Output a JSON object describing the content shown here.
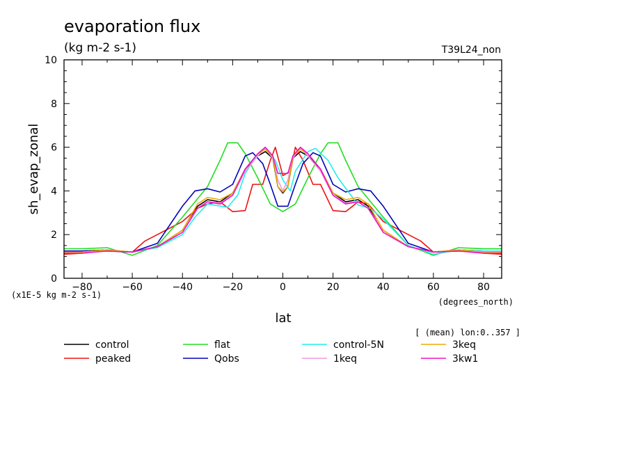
{
  "chart_data": {
    "type": "line",
    "title": "evaporation flux",
    "units": "(kg m-2 s-1)",
    "run_label": "T39L24_non",
    "ylabel": "sh_evap_zonal",
    "xlabel": "lat",
    "x_units": "(degrees_north)",
    "y_scale_note": "(x1E-5 kg m-2 s-1)",
    "mean_note": "[ (mean) lon:0..357 ]",
    "xlim": [
      -87.2,
      87.2
    ],
    "ylim": [
      0,
      10
    ],
    "x_ticks": [
      -80,
      -60,
      -40,
      -20,
      0,
      20,
      40,
      60,
      80
    ],
    "y_ticks": [
      0,
      2,
      4,
      6,
      8,
      10
    ],
    "grid": false,
    "legend_position": "bottom",
    "series": [
      {
        "name": "control",
        "color": "#000000",
        "x": [
          -87.2,
          -80,
          -70,
          -60,
          -50,
          -40,
          -34,
          -30,
          -25,
          -20,
          -15,
          -10,
          -7,
          -4,
          -2,
          0,
          2,
          4,
          7,
          10,
          15,
          20,
          25,
          30,
          34,
          40,
          50,
          60,
          70,
          80,
          87.2
        ],
        "y": [
          1.25,
          1.25,
          1.3,
          1.2,
          1.45,
          2.2,
          3.3,
          3.6,
          3.5,
          3.9,
          5.0,
          5.6,
          5.8,
          5.5,
          4.2,
          3.9,
          4.2,
          5.5,
          5.8,
          5.6,
          5.0,
          3.9,
          3.5,
          3.6,
          3.3,
          2.2,
          1.45,
          1.2,
          1.3,
          1.25,
          1.25
        ]
      },
      {
        "name": "peaked",
        "color": "#ee1111",
        "x": [
          -87.2,
          -80,
          -70,
          -60,
          -55,
          -50,
          -40,
          -34,
          -30,
          -25,
          -20,
          -15,
          -12,
          -8,
          -5,
          -3,
          0,
          3,
          5,
          8,
          12,
          15,
          20,
          25,
          30,
          34,
          40,
          50,
          55,
          60,
          70,
          80,
          87.2
        ],
        "y": [
          1.1,
          1.15,
          1.3,
          1.2,
          1.7,
          2.0,
          2.6,
          3.2,
          3.4,
          3.5,
          3.05,
          3.1,
          4.3,
          4.3,
          5.4,
          6.0,
          4.7,
          4.9,
          6.0,
          5.4,
          4.3,
          4.3,
          3.1,
          3.05,
          3.5,
          3.4,
          2.6,
          2.0,
          1.7,
          1.2,
          1.3,
          1.15,
          1.1
        ]
      },
      {
        "name": "flat",
        "color": "#22dd22",
        "x": [
          -87.2,
          -80,
          -70,
          -60,
          -50,
          -40,
          -30,
          -25,
          -22,
          -18,
          -15,
          -10,
          -5,
          0,
          5,
          10,
          15,
          18,
          22,
          25,
          30,
          40,
          50,
          60,
          70,
          80,
          87.2
        ],
        "y": [
          1.35,
          1.35,
          1.4,
          1.05,
          1.5,
          2.8,
          4.2,
          5.4,
          6.2,
          6.2,
          5.7,
          4.6,
          3.4,
          3.05,
          3.4,
          4.6,
          5.7,
          6.2,
          6.2,
          5.4,
          4.2,
          2.8,
          1.5,
          1.05,
          1.4,
          1.35,
          1.35
        ]
      },
      {
        "name": "Qobs",
        "color": "#0000bb",
        "x": [
          -87.2,
          -80,
          -70,
          -60,
          -50,
          -40,
          -35,
          -30,
          -25,
          -20,
          -15,
          -12,
          -8,
          -5,
          -2,
          0,
          2,
          5,
          8,
          12,
          15,
          20,
          25,
          30,
          35,
          40,
          50,
          60,
          70,
          80,
          87.2
        ],
        "y": [
          1.25,
          1.25,
          1.25,
          1.2,
          1.6,
          3.3,
          4.0,
          4.1,
          3.95,
          4.3,
          5.6,
          5.75,
          5.25,
          4.3,
          3.3,
          3.3,
          3.3,
          4.3,
          5.25,
          5.75,
          5.6,
          4.3,
          3.95,
          4.1,
          4.0,
          3.3,
          1.6,
          1.2,
          1.25,
          1.25,
          1.25
        ]
      },
      {
        "name": "control-5N",
        "color": "#22eeee",
        "x": [
          -87.2,
          -80,
          -70,
          -60,
          -50,
          -40,
          -35,
          -30,
          -22,
          -18,
          -15,
          -10,
          -7,
          -3,
          0,
          3,
          5,
          10,
          13,
          18,
          22,
          30,
          35,
          40,
          50,
          60,
          70,
          80,
          87.2
        ],
        "y": [
          1.2,
          1.2,
          1.3,
          1.2,
          1.4,
          2.0,
          2.8,
          3.4,
          3.25,
          3.8,
          4.8,
          5.7,
          5.9,
          5.4,
          4.5,
          4.0,
          4.9,
          5.8,
          5.95,
          5.4,
          4.6,
          3.35,
          3.2,
          2.7,
          1.5,
          1.1,
          1.3,
          1.25,
          1.25
        ]
      },
      {
        "name": "1keq",
        "color": "#ee99dd",
        "x": [
          -87.2,
          -80,
          -70,
          -60,
          -50,
          -40,
          -34,
          -30,
          -25,
          -20,
          -15,
          -10,
          -7,
          -4,
          -2,
          0,
          2,
          4,
          7,
          10,
          15,
          20,
          25,
          30,
          34,
          40,
          50,
          60,
          70,
          80,
          87.2
        ],
        "y": [
          1.2,
          1.2,
          1.3,
          1.2,
          1.45,
          2.2,
          3.2,
          3.5,
          3.45,
          3.8,
          4.9,
          5.6,
          5.95,
          5.5,
          4.5,
          4.0,
          4.5,
          5.5,
          5.95,
          5.6,
          4.9,
          3.8,
          3.45,
          3.5,
          3.2,
          2.2,
          1.45,
          1.2,
          1.3,
          1.2,
          1.2
        ]
      },
      {
        "name": "3keq",
        "color": "#eeaa00",
        "x": [
          -87.2,
          -80,
          -70,
          -60,
          -50,
          -40,
          -34,
          -30,
          -25,
          -20,
          -15,
          -10,
          -7,
          -4,
          -2,
          0,
          2,
          4,
          7,
          10,
          15,
          20,
          25,
          30,
          34,
          40,
          50,
          60,
          70,
          80,
          87.2
        ],
        "y": [
          1.2,
          1.2,
          1.3,
          1.2,
          1.45,
          2.2,
          3.4,
          3.7,
          3.6,
          3.9,
          5.0,
          5.7,
          5.9,
          5.6,
          4.2,
          3.95,
          4.2,
          5.6,
          5.9,
          5.7,
          5.0,
          3.9,
          3.6,
          3.7,
          3.4,
          2.2,
          1.45,
          1.2,
          1.3,
          1.2,
          1.2
        ]
      },
      {
        "name": "3kw1",
        "color": "#ee11cc",
        "x": [
          -87.2,
          -80,
          -70,
          -60,
          -50,
          -40,
          -34,
          -30,
          -25,
          -20,
          -15,
          -10,
          -7,
          -4,
          -2,
          0,
          2,
          4,
          7,
          10,
          15,
          20,
          25,
          30,
          34,
          40,
          50,
          60,
          70,
          80,
          87.2
        ],
        "y": [
          1.15,
          1.15,
          1.25,
          1.2,
          1.45,
          2.1,
          3.2,
          3.5,
          3.4,
          3.8,
          5.0,
          5.7,
          6.0,
          5.6,
          4.8,
          4.8,
          4.8,
          5.6,
          6.0,
          5.7,
          5.0,
          3.8,
          3.4,
          3.5,
          3.2,
          2.1,
          1.45,
          1.2,
          1.25,
          1.15,
          1.15
        ]
      }
    ]
  }
}
